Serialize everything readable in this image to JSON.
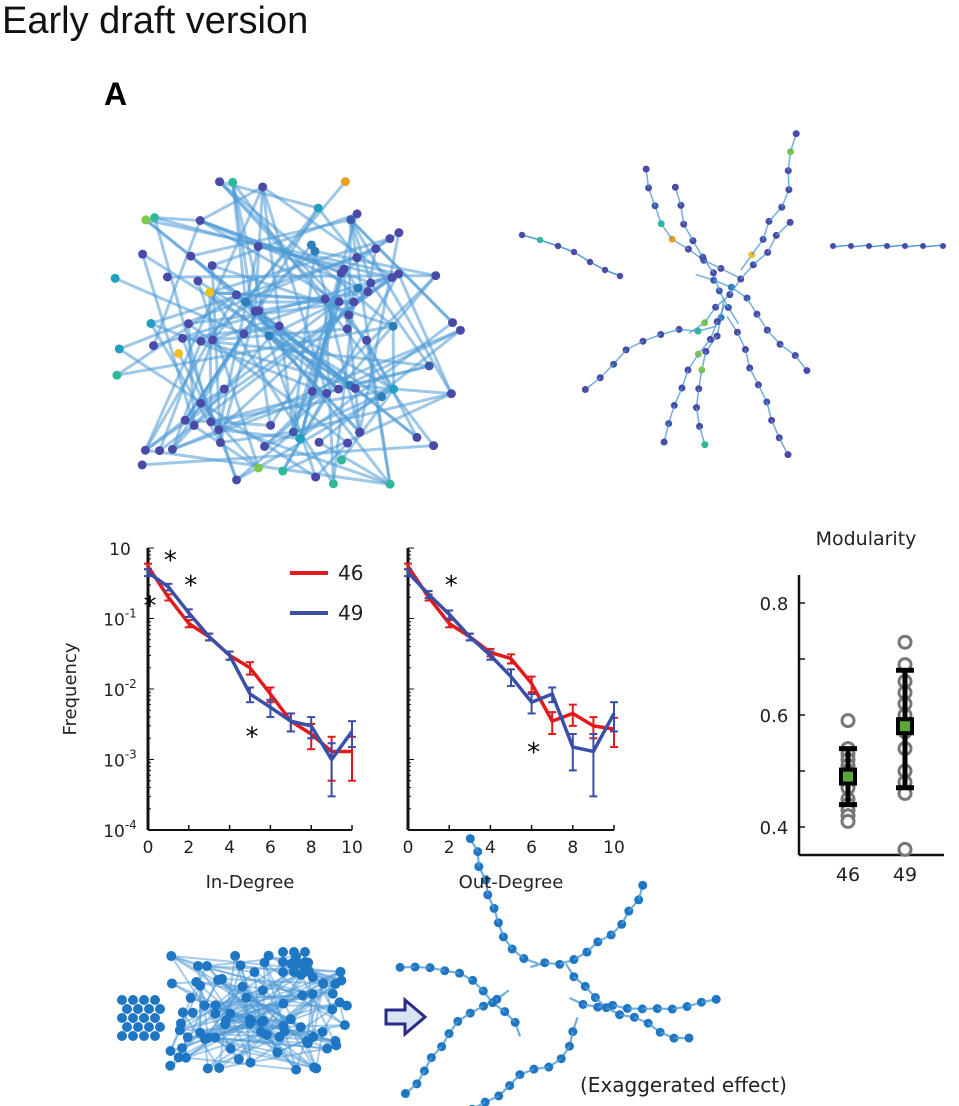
{
  "header": {
    "title": "Early draft version",
    "panel_label": "A"
  },
  "colors": {
    "series_46": "#e31a1c",
    "series_49": "#3a4fa8",
    "network_edge": "#4f9ad6",
    "node_dark": "#4a4aa8",
    "node_blue": "#1f77c4",
    "box_fill": "#5aa83c",
    "points": "#777777"
  },
  "icons": {
    "arrow": "right-outline-arrow-icon"
  },
  "chart_data": [
    {
      "type": "line",
      "title": "",
      "xlabel": "In-Degree",
      "ylabel": "Frequency",
      "yscale": "log",
      "ylim": [
        0.0001,
        1
      ],
      "xlim": [
        0,
        10
      ],
      "x_ticks": [
        "0",
        "2",
        "4",
        "6",
        "8",
        "10"
      ],
      "y_ticks": [
        {
          "base": "10",
          "exp": ""
        },
        {
          "base": "10",
          "exp": "-1"
        },
        {
          "base": "10",
          "exp": "-2"
        },
        {
          "base": "10",
          "exp": "-3"
        },
        {
          "base": "10",
          "exp": "-4"
        }
      ],
      "legend_position": "top-right",
      "x": [
        0,
        1,
        2,
        3,
        4,
        5,
        6,
        7,
        8,
        9,
        10
      ],
      "series": [
        {
          "name": "46",
          "values": [
            0.55,
            0.2,
            0.085,
            0.055,
            0.03,
            0.02,
            0.0085,
            0.0035,
            0.0023,
            0.0013,
            0.0013
          ],
          "error": [
            0.05,
            0.02,
            0.01,
            0.006,
            0.004,
            0.004,
            0.002,
            0.001,
            0.0009,
            0.0008,
            0.0008
          ]
        },
        {
          "name": "49",
          "values": [
            0.45,
            0.28,
            0.12,
            0.055,
            0.03,
            0.0085,
            0.0055,
            0.0035,
            0.003,
            0.001,
            0.0025
          ],
          "error": [
            0.05,
            0.03,
            0.015,
            0.006,
            0.004,
            0.002,
            0.0015,
            0.001,
            0.001,
            0.0007,
            0.001
          ]
        }
      ],
      "annotations": [
        {
          "text": "*",
          "x": 0,
          "y": 0.18
        },
        {
          "text": "*",
          "x": 1,
          "y": 0.8
        },
        {
          "text": "*",
          "x": 2,
          "y": 0.35
        },
        {
          "text": "*",
          "x": 5,
          "y": 0.0025
        }
      ]
    },
    {
      "type": "line",
      "title": "",
      "xlabel": "Out-Degree",
      "ylabel": "",
      "yscale": "log",
      "ylim": [
        0.0001,
        1
      ],
      "xlim": [
        0,
        10
      ],
      "x_ticks": [
        "0",
        "2",
        "4",
        "6",
        "8",
        "10"
      ],
      "x": [
        0,
        1,
        2,
        3,
        4,
        5,
        6,
        7,
        8,
        9,
        10
      ],
      "series": [
        {
          "name": "46",
          "values": [
            0.55,
            0.2,
            0.085,
            0.055,
            0.033,
            0.027,
            0.012,
            0.0035,
            0.0045,
            0.003,
            0.0027
          ],
          "error": [
            0.05,
            0.02,
            0.01,
            0.006,
            0.004,
            0.004,
            0.003,
            0.0012,
            0.0015,
            0.001,
            0.0012
          ]
        },
        {
          "name": "49",
          "values": [
            0.45,
            0.22,
            0.115,
            0.055,
            0.03,
            0.015,
            0.0065,
            0.0085,
            0.0015,
            0.0013,
            0.0045
          ],
          "error": [
            0.05,
            0.025,
            0.015,
            0.006,
            0.004,
            0.004,
            0.002,
            0.002,
            0.0008,
            0.001,
            0.002
          ]
        }
      ],
      "annotations": [
        {
          "text": "*",
          "x": 2,
          "y": 0.35
        },
        {
          "text": "*",
          "x": 6,
          "y": 0.0015
        }
      ]
    },
    {
      "type": "scatter",
      "title": "Modularity",
      "xlabel": "",
      "ylabel": "",
      "categories": [
        "46",
        "49"
      ],
      "ylim": [
        0.35,
        0.85
      ],
      "y_ticks": [
        "0.8",
        "0.6",
        "0.4"
      ],
      "points": [
        [
          0.59,
          0.54,
          0.53,
          0.52,
          0.51,
          0.5,
          0.49,
          0.48,
          0.47,
          0.45,
          0.44,
          0.43,
          0.42,
          0.41
        ],
        [
          0.73,
          0.69,
          0.66,
          0.64,
          0.62,
          0.6,
          0.57,
          0.54,
          0.5,
          0.48,
          0.46,
          0.36
        ]
      ],
      "mean": [
        0.49,
        0.58
      ],
      "sd_low": [
        0.44,
        0.47
      ],
      "sd_high": [
        0.54,
        0.68
      ]
    }
  ],
  "bottom": {
    "caption": "(Exaggerated effect)"
  }
}
